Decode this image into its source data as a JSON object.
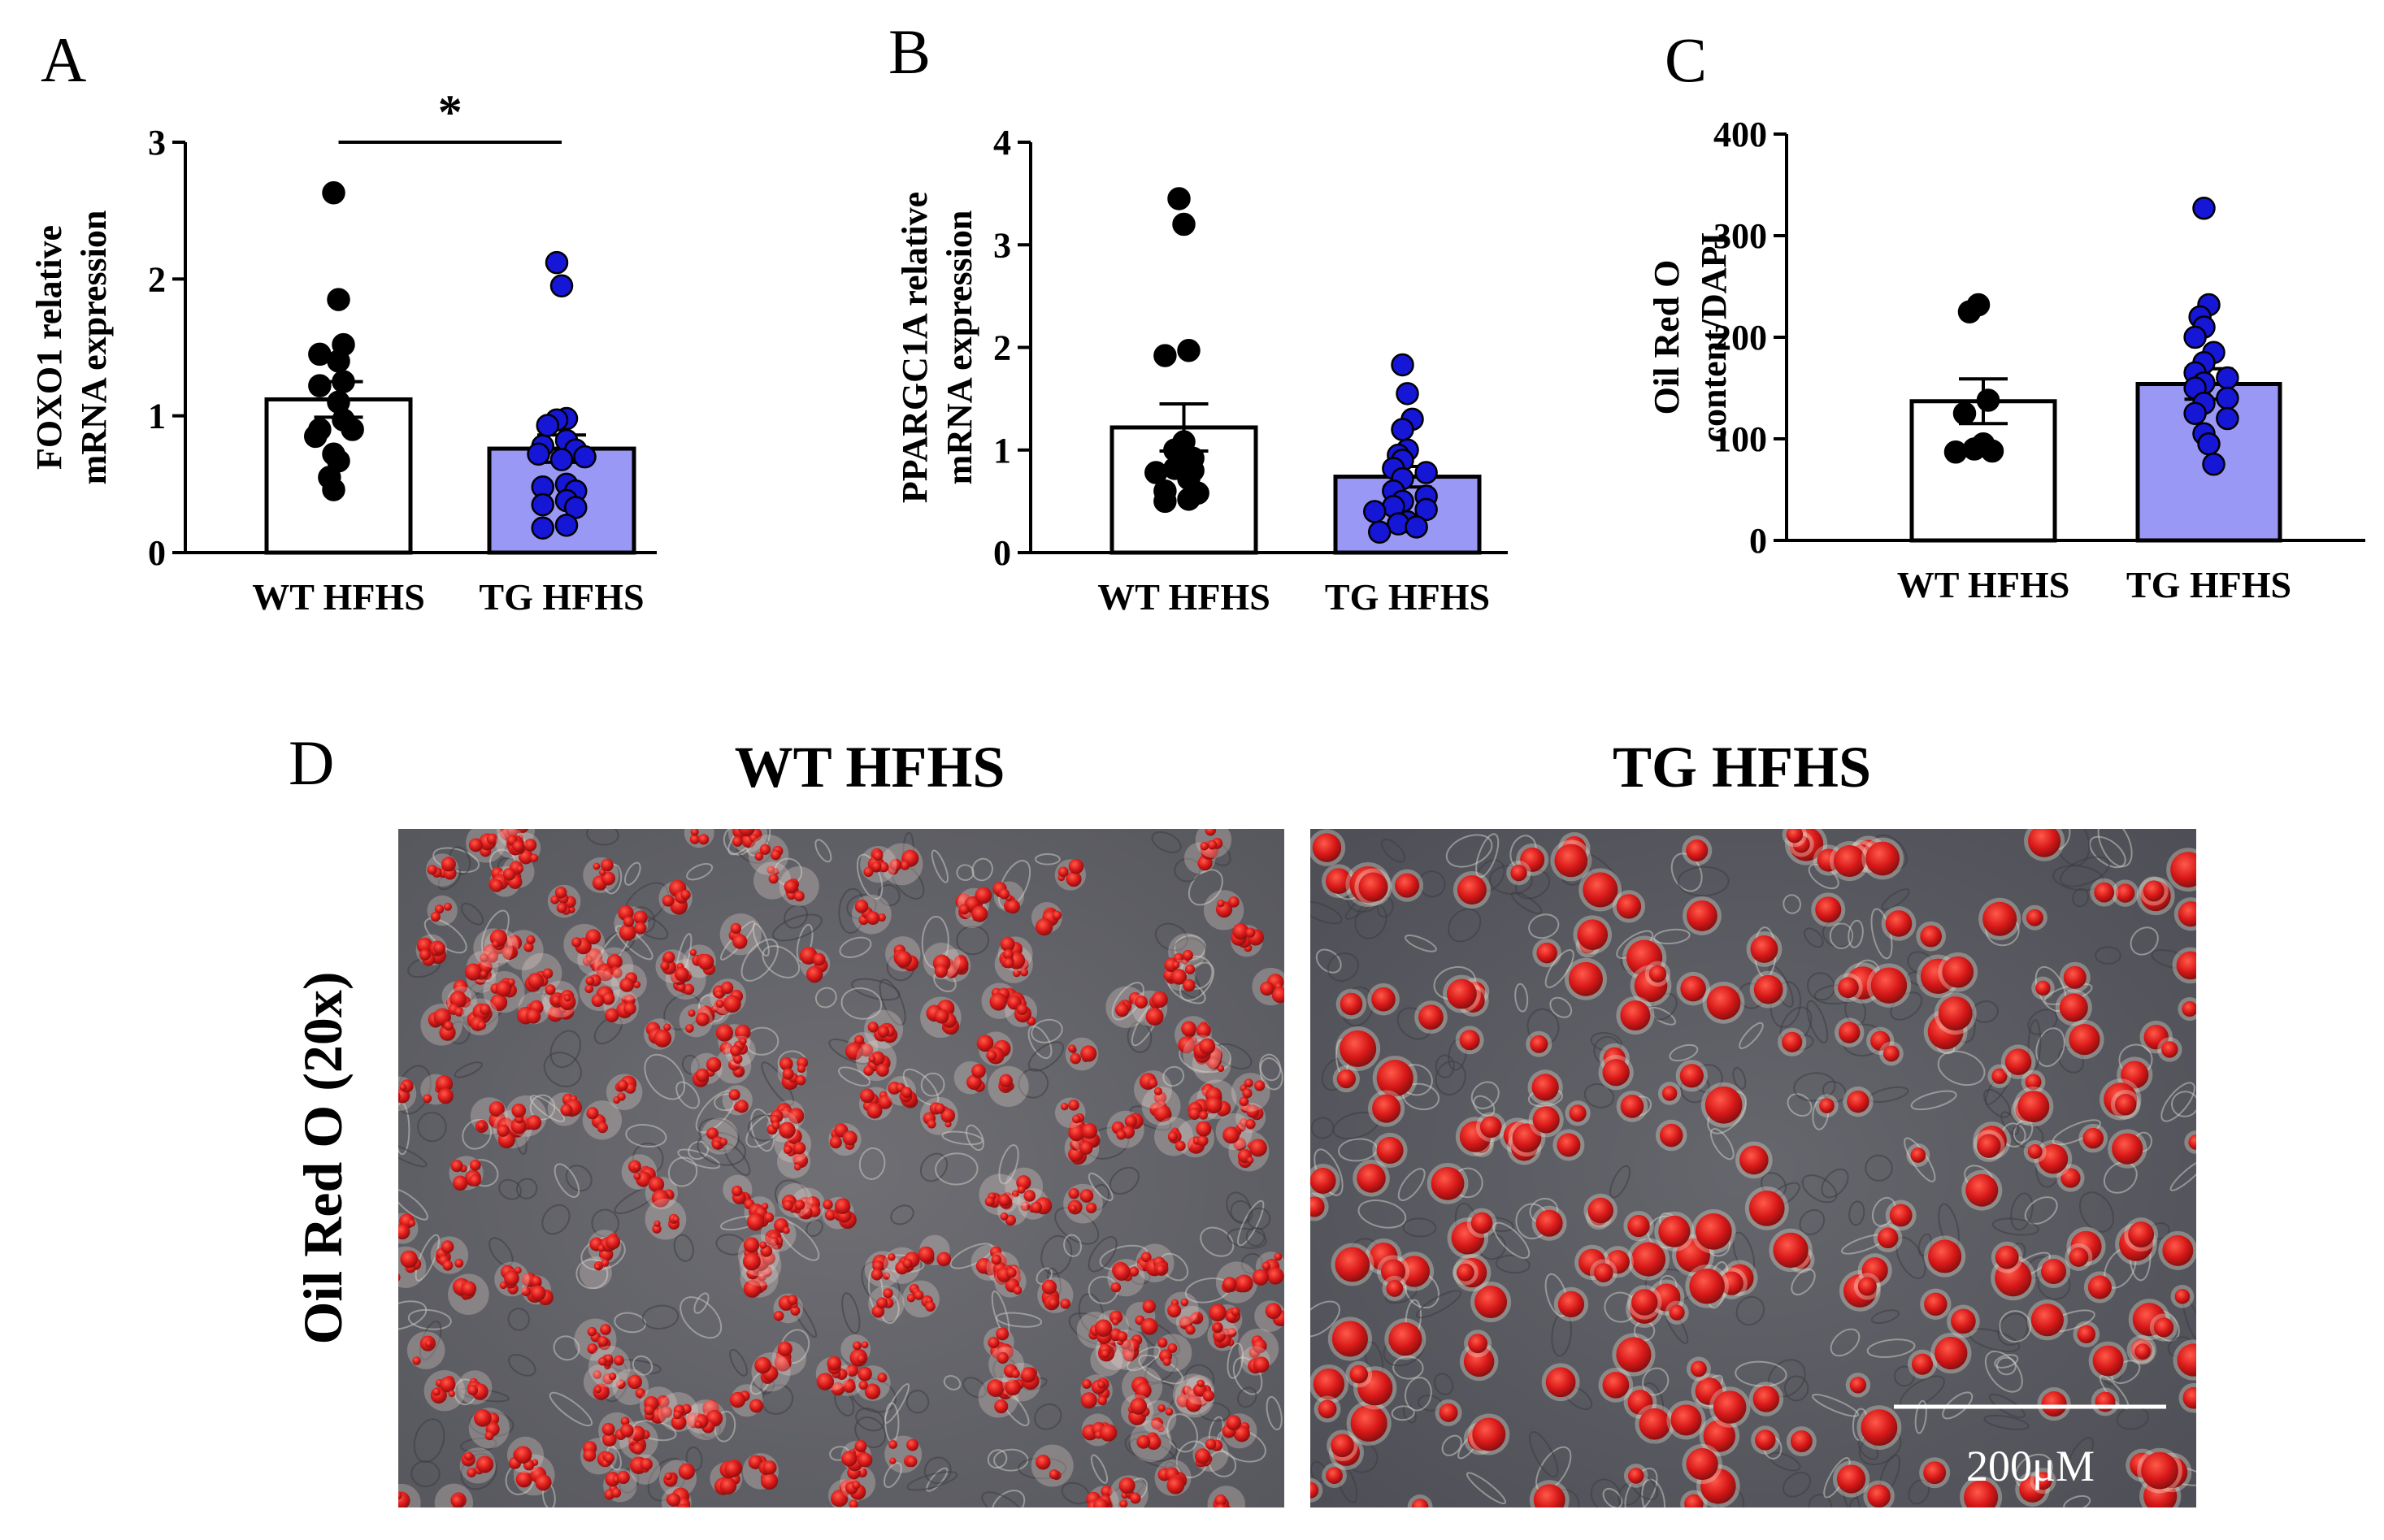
{
  "panels": {
    "A": "A",
    "B": "B",
    "C": "C",
    "D": "D"
  },
  "chart_data": [
    {
      "panel": "A",
      "type": "bar",
      "categories": [
        "WT HFHS",
        "TG HFHS"
      ],
      "values": [
        1.12,
        0.76
      ],
      "errors": [
        0.13,
        0.1
      ],
      "ylabel": [
        "FOXO1 relative",
        "mRNA expression"
      ],
      "ylim": [
        0,
        3
      ],
      "yticks": [
        0,
        1,
        2,
        3
      ],
      "points": [
        [
          2.63,
          1.85,
          1.52,
          1.45,
          1.4,
          1.25,
          1.22,
          1.1,
          0.97,
          0.9,
          0.9,
          0.85,
          0.72,
          0.67,
          0.55,
          0.46
        ],
        [
          2.12,
          1.95,
          0.98,
          0.97,
          0.93,
          0.82,
          0.78,
          0.75,
          0.72,
          0.7,
          0.68,
          0.5,
          0.48,
          0.45,
          0.38,
          0.35,
          0.33,
          0.2,
          0.18
        ]
      ],
      "point_colors": [
        "#000000",
        "#1616d6"
      ],
      "bar_fills": [
        "#ffffff",
        "#9999f5"
      ],
      "significance": "*"
    },
    {
      "panel": "B",
      "type": "bar",
      "categories": [
        "WT HFHS",
        "TG HFHS"
      ],
      "values": [
        1.22,
        0.74
      ],
      "errors": [
        0.23,
        0.1
      ],
      "ylabel": [
        "PPARGC1A relative",
        "mRNA expression"
      ],
      "ylim": [
        0,
        4
      ],
      "yticks": [
        0,
        1,
        2,
        3,
        4
      ],
      "points": [
        [
          3.45,
          3.2,
          1.97,
          1.92,
          1.08,
          1.0,
          0.92,
          0.88,
          0.82,
          0.8,
          0.78,
          0.72,
          0.6,
          0.58,
          0.52,
          0.5
        ],
        [
          1.83,
          1.55,
          1.3,
          1.2,
          1.0,
          0.95,
          0.9,
          0.82,
          0.78,
          0.72,
          0.6,
          0.55,
          0.5,
          0.45,
          0.42,
          0.4,
          0.3,
          0.28,
          0.25,
          0.2
        ]
      ],
      "point_colors": [
        "#000000",
        "#1616d6"
      ],
      "bar_fills": [
        "#ffffff",
        "#9999f5"
      ]
    },
    {
      "panel": "C",
      "type": "bar",
      "categories": [
        "WT HFHS",
        "TG HFHS"
      ],
      "values": [
        137,
        154
      ],
      "errors": [
        22,
        15
      ],
      "ylabel": [
        "Oil Red O",
        "content/DAPI"
      ],
      "ylim": [
        0,
        400
      ],
      "yticks": [
        0,
        100,
        200,
        300,
        400
      ],
      "points": [
        [
          232,
          225,
          138,
          125,
          95,
          90,
          88,
          87
        ],
        [
          327,
          232,
          220,
          210,
          200,
          185,
          175,
          165,
          160,
          155,
          150,
          140,
          135,
          125,
          120,
          105,
          95,
          75
        ]
      ],
      "point_colors": [
        "#000000",
        "#1616d6"
      ],
      "bar_fills": [
        "#ffffff",
        "#9999f5"
      ]
    }
  ],
  "micrographs": {
    "titles": [
      "WT HFHS",
      "TG HFHS"
    ],
    "side_label": "Oil Red O (20x)",
    "scale_bar": "200μM"
  }
}
